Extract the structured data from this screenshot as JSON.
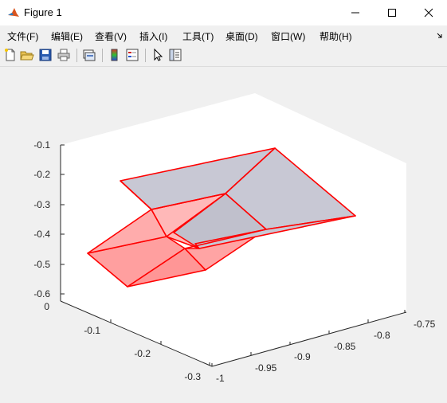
{
  "window": {
    "title": "Figure 1",
    "icon": "matlab-icon"
  },
  "menu": [
    "文件(F)",
    "编辑(E)",
    "查看(V)",
    "插入(I)",
    "工具(T)",
    "桌面(D)",
    "窗口(W)",
    "帮助(H)"
  ],
  "toolbar": [
    "new-figure-icon",
    "open-file-icon",
    "save-icon",
    "print-icon",
    "link-plot-icon",
    "colorbar-icon",
    "legend-icon",
    "pointer-icon",
    "property-inspector-icon"
  ],
  "axes": {
    "z_ticks": [
      "-0.1",
      "-0.2",
      "-0.3",
      "-0.4",
      "-0.5",
      "-0.6"
    ],
    "y_ticks": [
      "0",
      "-0.1",
      "-0.2",
      "-0.3"
    ],
    "x_ticks": [
      "-1",
      "-0.95",
      "-0.9",
      "-0.85",
      "-0.8",
      "-0.75"
    ]
  },
  "colors": {
    "edge": "#ff0000",
    "face_gray": "#c8c8d4",
    "face_red": "#ff9a9a",
    "axes_bg": "#ffffff"
  }
}
